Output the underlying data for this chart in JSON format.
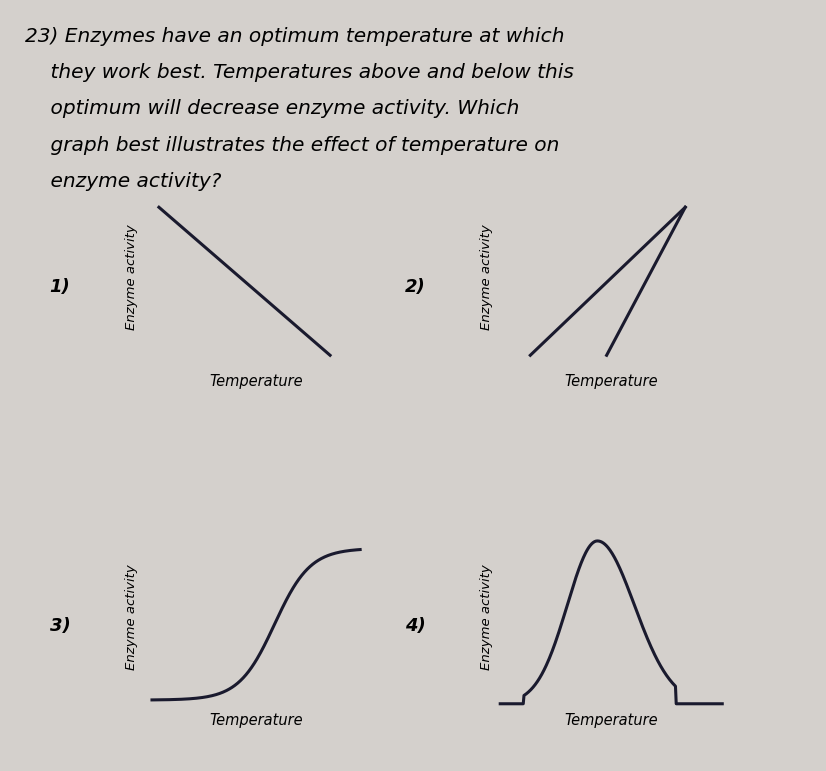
{
  "background_color": "#d4d0cc",
  "question_text_line1": "23) Enzymes have an optimum temperature at which",
  "question_text_line2": "    they work best. Temperatures above and below this",
  "question_text_line3": "    optimum will decrease enzyme activity. Which",
  "question_text_line4": "    graph best illustrates the effect of temperature on",
  "question_text_line5": "    enzyme activity?",
  "question_fontsize": 14.5,
  "graph_labels": [
    "1)",
    "2)",
    "3)",
    "4)"
  ],
  "xlabel": "Temperature",
  "ylabel": "Enzyme activity",
  "line_color": "#1a1a2e",
  "line_width": 2.2,
  "label_fontsize": 13,
  "axis_label_fontsize": 10.5,
  "ylabel_fontsize": 9.5
}
